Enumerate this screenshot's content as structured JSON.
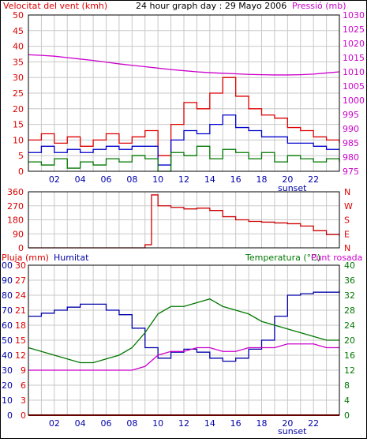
{
  "colors": {
    "wind": "#dd0000",
    "wind_avg": "#0000cc",
    "wind_min": "#007700",
    "pressure": "#cc00cc",
    "direction": "#cc0000",
    "rain": "#cc0000",
    "humidity": "#0000aa",
    "temperature": "#007700",
    "dewpoint": "#cc00cc",
    "grid": "#c8c8c8",
    "frame": "#000000"
  },
  "chart_data": [
    {
      "type": "line",
      "title": "24 hour graph day : 29 Mayo 2006",
      "left_axis_label": "Velocitat del vent (kmh)",
      "right_axis_label": "Pressió (mb)",
      "x_ticks": [
        "02",
        "04",
        "06",
        "08",
        "10",
        "12",
        "14",
        "16",
        "18",
        "20",
        "22"
      ],
      "x_note": "sunset",
      "ylim_left": [
        0,
        50
      ],
      "ylim_right": [
        975,
        1030
      ],
      "y_ticks_left": [
        "0",
        "5",
        "10",
        "15",
        "20",
        "25",
        "30",
        "35",
        "40",
        "45",
        "50"
      ],
      "y_ticks_right": [
        "975",
        "980",
        "985",
        "990",
        "995",
        "1000",
        "1005",
        "1010",
        "1015",
        "1020",
        "1025",
        "1030"
      ],
      "x": [
        0,
        1,
        2,
        3,
        4,
        5,
        6,
        7,
        8,
        9,
        10,
        11,
        12,
        13,
        14,
        15,
        16,
        17,
        18,
        19,
        20,
        21,
        22,
        23,
        24
      ],
      "series": [
        {
          "key": "wind_gust",
          "values": [
            10,
            12,
            9,
            11,
            8,
            10,
            12,
            9,
            11,
            13,
            5,
            15,
            22,
            20,
            25,
            30,
            24,
            20,
            18,
            17,
            14,
            13,
            11,
            10,
            9
          ]
        },
        {
          "key": "wind_avg",
          "values": [
            6,
            8,
            6,
            7,
            6,
            7,
            8,
            7,
            8,
            8,
            2,
            10,
            13,
            12,
            15,
            18,
            14,
            13,
            11,
            11,
            9,
            9,
            8,
            7,
            7
          ]
        },
        {
          "key": "wind_min",
          "values": [
            3,
            2,
            4,
            1,
            3,
            2,
            4,
            3,
            5,
            4,
            0,
            6,
            5,
            8,
            4,
            7,
            6,
            4,
            6,
            3,
            5,
            4,
            3,
            4,
            3
          ]
        },
        {
          "key": "pressure",
          "values": [
            1016,
            1015.8,
            1015.5,
            1015,
            1014.5,
            1014,
            1013.4,
            1012.8,
            1012.3,
            1011.8,
            1011.3,
            1010.8,
            1010.4,
            1010,
            1009.7,
            1009.5,
            1009.3,
            1009.1,
            1009,
            1008.9,
            1008.9,
            1009,
            1009.2,
            1009.6,
            1010
          ]
        }
      ]
    },
    {
      "type": "line",
      "left_axis_label": "",
      "y_ticks_left": [
        "0",
        "90",
        "180",
        "270",
        "360"
      ],
      "ylim_left": [
        0,
        360
      ],
      "y_ticks_right": [
        "N",
        "W",
        "S",
        "E",
        "N"
      ],
      "x": [
        0,
        1,
        2,
        3,
        4,
        5,
        6,
        7,
        8,
        9,
        9.5,
        10,
        11,
        12,
        13,
        14,
        15,
        16,
        17,
        18,
        19,
        20,
        21,
        22,
        23,
        24
      ],
      "series": [
        {
          "key": "wind_direction",
          "values": [
            0,
            0,
            0,
            0,
            0,
            0,
            0,
            0,
            0,
            20,
            340,
            270,
            260,
            250,
            255,
            240,
            200,
            180,
            170,
            165,
            160,
            155,
            140,
            110,
            85,
            80
          ]
        }
      ]
    },
    {
      "type": "line",
      "rain_label": "Pluja (mm)",
      "humidity_label": "Humitat",
      "temp_label": "Temperatura (°C)",
      "dew_label": "Punt rosada",
      "x_ticks": [
        "02",
        "04",
        "06",
        "08",
        "10",
        "12",
        "14",
        "16",
        "18",
        "20",
        "22"
      ],
      "x_note": "sunset",
      "y_ticks_humidity": [
        "0",
        "10",
        "20",
        "30",
        "40",
        "50",
        "60",
        "70",
        "80",
        "90",
        "100"
      ],
      "y_ticks_rain": [
        "0",
        "3",
        "6",
        "9",
        "12",
        "15",
        "18",
        "21",
        "24",
        "27",
        "30"
      ],
      "y_ticks_temp": [
        "0",
        "4",
        "8",
        "12",
        "16",
        "20",
        "24",
        "28",
        "32",
        "36",
        "40"
      ],
      "ylim_humidity": [
        0,
        100
      ],
      "ylim_temp": [
        0,
        40
      ],
      "x": [
        0,
        1,
        2,
        3,
        4,
        5,
        6,
        7,
        8,
        9,
        10,
        11,
        12,
        13,
        14,
        15,
        16,
        17,
        18,
        19,
        20,
        21,
        22,
        23,
        24
      ],
      "series": [
        {
          "key": "humidity",
          "values": [
            66,
            68,
            70,
            72,
            74,
            74,
            70,
            67,
            58,
            45,
            38,
            42,
            44,
            42,
            38,
            36,
            38,
            44,
            50,
            66,
            80,
            81,
            82,
            82,
            83
          ]
        },
        {
          "key": "temperature",
          "values": [
            18,
            17,
            16,
            15,
            14,
            14,
            15,
            16,
            18,
            22,
            27,
            29,
            29,
            30,
            31,
            29,
            28,
            27,
            25,
            24,
            23,
            22,
            21,
            20,
            20
          ]
        },
        {
          "key": "dewpoint",
          "values": [
            12,
            12,
            12,
            12,
            12,
            12,
            12,
            12,
            12,
            13,
            16,
            17,
            17,
            18,
            18,
            17,
            17,
            18,
            18,
            18,
            19,
            19,
            19,
            18,
            18
          ]
        },
        {
          "key": "rain",
          "values": [
            0,
            0,
            0,
            0,
            0,
            0,
            0,
            0,
            0,
            0,
            0,
            0,
            0,
            0,
            0,
            0,
            0,
            0,
            0,
            0,
            0,
            0,
            0,
            0,
            0
          ]
        }
      ]
    }
  ]
}
